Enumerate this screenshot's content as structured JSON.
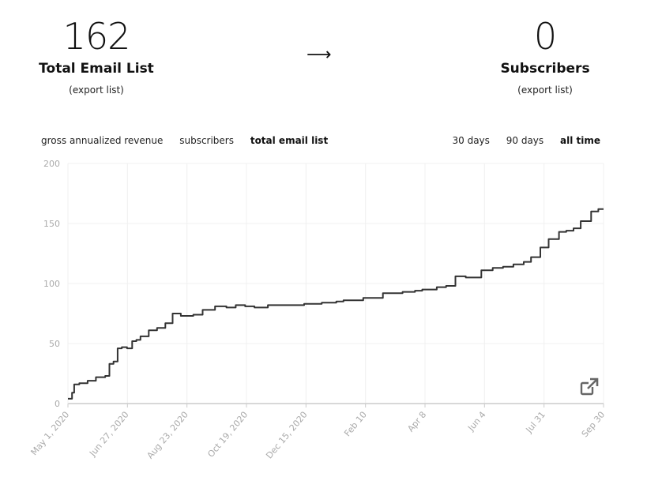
{
  "stats": {
    "left": {
      "value": "162",
      "label": "Total Email List",
      "link": "(export list)"
    },
    "right": {
      "value": "0",
      "label": "Subscribers",
      "link": "(export list)"
    },
    "arrow": "⟶"
  },
  "metric_tabs": [
    {
      "label": "gross annualized revenue",
      "active": false
    },
    {
      "label": "subscribers",
      "active": false
    },
    {
      "label": "total email list",
      "active": true
    }
  ],
  "range_tabs": [
    {
      "label": "30 days",
      "active": false
    },
    {
      "label": "90 days",
      "active": false
    },
    {
      "label": "all time",
      "active": true
    }
  ],
  "colors": {
    "line": "#333333",
    "grid": "#f0f0f0",
    "axis": "#cccccc",
    "tick_text": "#aaaaaa",
    "icon": "#666666"
  },
  "icons": {
    "expand": "external-link-icon"
  },
  "chart_data": {
    "type": "line",
    "title": "",
    "xlabel": "",
    "ylabel": "",
    "ylim": [
      0,
      200
    ],
    "grid": true,
    "y_ticks": [
      0,
      50,
      100,
      150,
      200
    ],
    "x_ticks": [
      "May 1, 2020",
      "Jun 27, 2020",
      "Aug 23, 2020",
      "Oct 19, 2020",
      "Dec 15, 2020",
      "Feb 10",
      "Apr 8",
      "Jun 4",
      "Jul 31",
      "Sep 30"
    ],
    "series": [
      {
        "x": [
          "2020-05-01",
          "2020-05-03",
          "2020-05-05",
          "2020-05-07",
          "2020-05-12",
          "2020-05-20",
          "2020-05-28",
          "2020-06-06",
          "2020-06-10",
          "2020-06-14",
          "2020-06-18",
          "2020-06-22",
          "2020-06-27",
          "2020-07-02",
          "2020-07-06",
          "2020-07-10",
          "2020-07-18",
          "2020-07-26",
          "2020-08-03",
          "2020-08-10",
          "2020-08-18",
          "2020-08-23",
          "2020-08-30",
          "2020-09-08",
          "2020-09-20",
          "2020-10-01",
          "2020-10-10",
          "2020-10-19",
          "2020-10-28",
          "2020-11-10",
          "2020-11-25",
          "2020-12-15",
          "2021-01-01",
          "2021-01-15",
          "2021-01-22",
          "2021-02-10",
          "2021-03-01",
          "2021-03-20",
          "2021-04-01",
          "2021-04-08",
          "2021-04-14",
          "2021-04-22",
          "2021-05-01",
          "2021-05-10",
          "2021-05-20",
          "2021-06-04",
          "2021-06-15",
          "2021-06-25",
          "2021-07-05",
          "2021-07-15",
          "2021-07-22",
          "2021-07-31",
          "2021-08-08",
          "2021-08-18",
          "2021-08-25",
          "2021-09-01",
          "2021-09-08",
          "2021-09-18",
          "2021-09-25",
          "2021-09-30"
        ],
        "values": [
          4,
          4,
          9,
          16,
          17,
          19,
          22,
          23,
          33,
          35,
          46,
          47,
          46,
          52,
          53,
          56,
          61,
          63,
          67,
          75,
          73,
          73,
          74,
          78,
          81,
          80,
          82,
          81,
          80,
          82,
          82,
          83,
          84,
          85,
          86,
          88,
          92,
          93,
          94,
          95,
          95,
          97,
          98,
          106,
          105,
          111,
          113,
          114,
          116,
          118,
          122,
          130,
          137,
          143,
          144,
          146,
          152,
          160,
          162,
          162
        ]
      }
    ]
  }
}
